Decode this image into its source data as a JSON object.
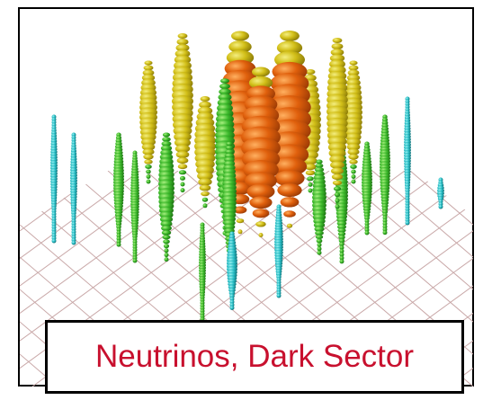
{
  "caption": "Neutrinos, Dark Sector"
}
